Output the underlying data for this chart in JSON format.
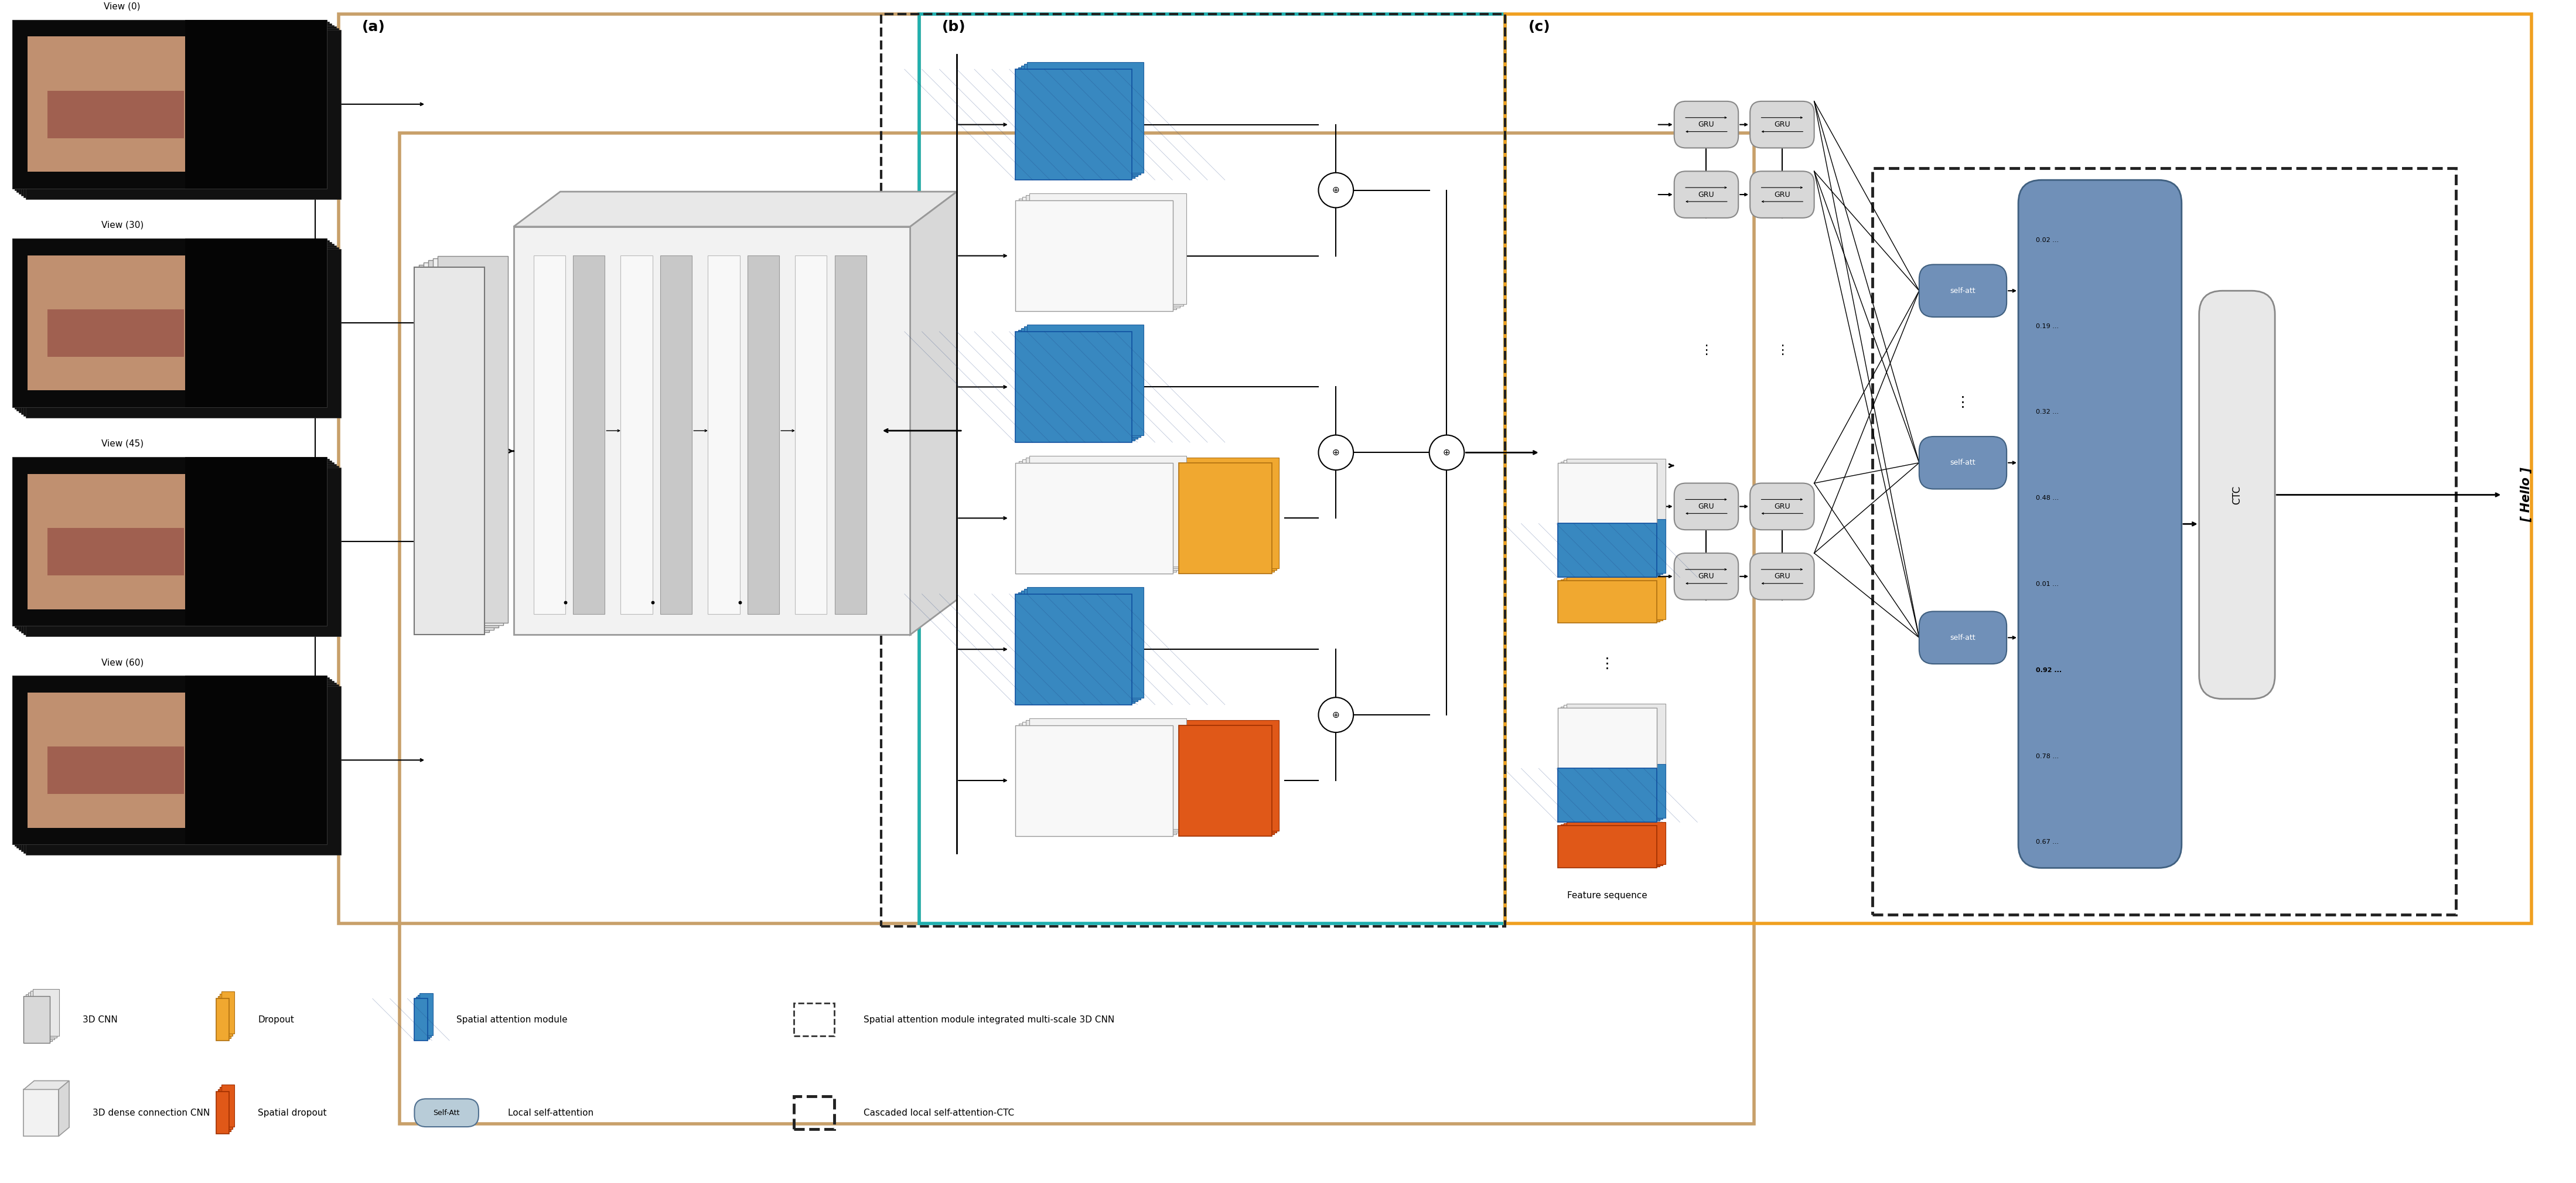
{
  "fig_width": 43.97,
  "fig_height": 20.19,
  "bg_color": "#ffffff",
  "border_a_color": "#c8a06a",
  "border_b_color": "#20b0b0",
  "border_c_color": "#f0a020",
  "gru_fill": "#d8d8d8",
  "self_att_fill": "#7090b8",
  "orange_color": "#f0a830",
  "red_color": "#e05818",
  "blue_color": "#3888c0",
  "gray_color": "#e0e0e0",
  "view_labels": [
    "View (0)",
    "View (30)",
    "View (45)",
    "View (60)"
  ],
  "prob_values": [
    "0.02 ...",
    "0.19 ...",
    "0.32 ...",
    "0.48 ...",
    "0.01 ...",
    "0.92 ...",
    "0.78 ...",
    "0.67 ..."
  ]
}
